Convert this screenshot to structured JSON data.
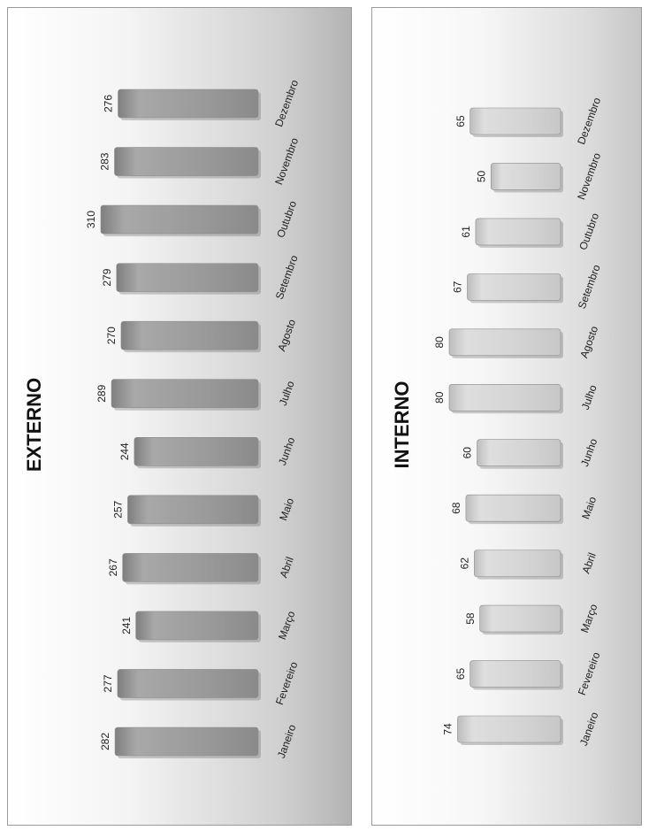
{
  "chart_data": [
    {
      "type": "bar",
      "orientation": "rotated-90",
      "title": "EXTERNO",
      "categories": [
        "Janeiro",
        "Fevereiro",
        "Março",
        "Abril",
        "Maio",
        "Junho",
        "Julho",
        "Agosto",
        "Setembro",
        "Outubro",
        "Novembro",
        "Dezembro"
      ],
      "values": [
        282,
        277,
        241,
        267,
        257,
        244,
        289,
        270,
        279,
        310,
        283,
        276
      ],
      "xlabel": "",
      "ylabel": "",
      "ylim": [
        0,
        310
      ],
      "grid": false,
      "legend": "none",
      "bar_color": "#9c9c9c"
    },
    {
      "type": "bar",
      "orientation": "rotated-90",
      "title": "INTERNO",
      "categories": [
        "Janeiro",
        "Fevereiro",
        "Março",
        "Abril",
        "Maio",
        "Junho",
        "Julho",
        "Agosto",
        "Setembro",
        "Outubro",
        "Novembro",
        "Dezembro"
      ],
      "values": [
        74,
        65,
        58,
        62,
        68,
        60,
        80,
        80,
        67,
        61,
        50,
        65
      ],
      "xlabel": "",
      "ylabel": "",
      "ylim": [
        0,
        80
      ],
      "grid": false,
      "legend": "none",
      "bar_color": "#d3d3d3"
    }
  ]
}
